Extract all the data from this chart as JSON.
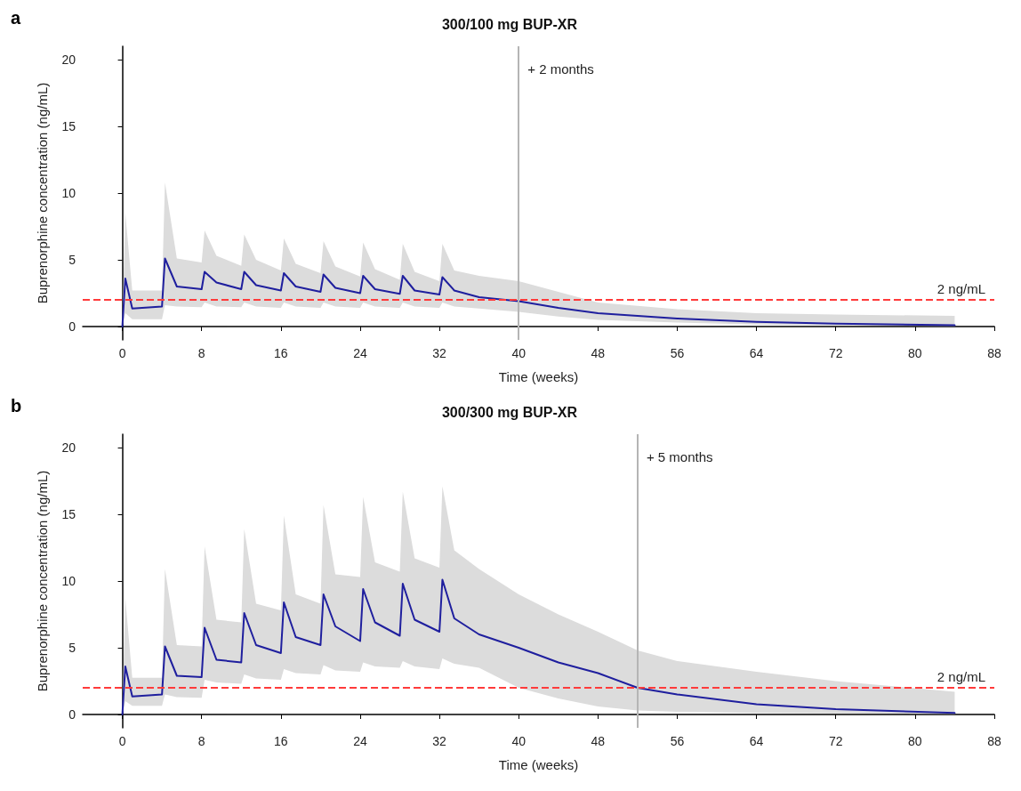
{
  "chart_data": [
    {
      "type": "line",
      "title": "300/100 mg BUP-XR",
      "xlabel": "Time (weeks)",
      "ylabel": "Buprenorphine concentration (ng/mL)",
      "annotations": [
        "a"
      ],
      "x": [
        0,
        0.3,
        1,
        4,
        4.3,
        5.5,
        8,
        8.3,
        9.5,
        12,
        12.3,
        13.5,
        16,
        16.3,
        17.5,
        20,
        20.3,
        21.5,
        24,
        24.3,
        25.5,
        28,
        28.3,
        29.5,
        32,
        32.3,
        33.5,
        36,
        40,
        44,
        48,
        56,
        64,
        72,
        84
      ],
      "series": [
        {
          "color": "#1f1f9e",
          "values": [
            0,
            3.6,
            1.35,
            1.5,
            5.1,
            3.0,
            2.8,
            4.1,
            3.3,
            2.8,
            4.1,
            3.1,
            2.7,
            4.0,
            3.0,
            2.6,
            3.9,
            2.9,
            2.5,
            3.8,
            2.8,
            2.45,
            3.8,
            2.7,
            2.4,
            3.7,
            2.7,
            2.2,
            1.9,
            1.4,
            1.0,
            0.6,
            0.35,
            0.22,
            0.1
          ],
          "upper": [
            0,
            8.5,
            2.7,
            2.7,
            10.8,
            5.1,
            4.8,
            7.2,
            5.3,
            4.55,
            6.9,
            5.0,
            4.2,
            6.6,
            4.7,
            4.0,
            6.4,
            4.5,
            3.75,
            6.3,
            4.3,
            3.5,
            6.2,
            4.1,
            3.4,
            6.2,
            4.2,
            3.8,
            3.4,
            2.6,
            1.8,
            1.3,
            1.0,
            0.9,
            0.8
          ],
          "lower": [
            0,
            1.0,
            0.55,
            0.55,
            1.6,
            1.5,
            1.45,
            1.8,
            1.5,
            1.45,
            1.8,
            1.5,
            1.4,
            1.8,
            1.5,
            1.4,
            1.8,
            1.5,
            1.4,
            1.8,
            1.5,
            1.4,
            1.8,
            1.5,
            1.4,
            1.8,
            1.5,
            1.35,
            1.1,
            0.75,
            0.5,
            0.3,
            0.15,
            0.1,
            0.05
          ]
        }
      ],
      "xlim": [
        -4,
        88
      ],
      "xticks": [
        0,
        8,
        16,
        24,
        32,
        40,
        48,
        56,
        64,
        72,
        80,
        88
      ],
      "ylim": [
        -1,
        21
      ],
      "yticks": [
        0,
        5,
        10,
        15,
        20
      ],
      "ref_lines": [
        {
          "axis": "y",
          "value": 2,
          "label": "2 ng/mL",
          "color": "#ff3b3b",
          "line_style": "dashed"
        },
        {
          "axis": "x",
          "value": 40,
          "label": "+ 2 months",
          "color": "#b5b5b5"
        }
      ]
    },
    {
      "type": "line",
      "title": "300/300 mg BUP-XR",
      "xlabel": "Time (weeks)",
      "ylabel": "Buprenorphine concentration (ng/mL)",
      "annotations": [
        "b"
      ],
      "x": [
        0,
        0.3,
        1,
        4,
        4.3,
        5.5,
        8,
        8.3,
        9.5,
        12,
        12.3,
        13.5,
        16,
        16.3,
        17.5,
        20,
        20.3,
        21.5,
        24,
        24.3,
        25.5,
        28,
        28.3,
        29.5,
        32,
        32.3,
        33.5,
        36,
        40,
        44,
        48,
        52,
        56,
        64,
        72,
        84
      ],
      "series": [
        {
          "color": "#1f1f9e",
          "values": [
            0,
            3.6,
            1.35,
            1.5,
            5.1,
            2.9,
            2.8,
            6.5,
            4.1,
            3.9,
            7.6,
            5.2,
            4.6,
            8.4,
            5.8,
            5.2,
            9.0,
            6.6,
            5.5,
            9.4,
            6.9,
            5.9,
            9.8,
            7.1,
            6.2,
            10.1,
            7.2,
            6.0,
            5.0,
            3.9,
            3.1,
            2.0,
            1.5,
            0.77,
            0.4,
            0.12
          ],
          "upper": [
            0,
            8.7,
            2.75,
            2.75,
            10.9,
            5.2,
            5.1,
            12.6,
            7.1,
            6.9,
            13.9,
            8.3,
            7.8,
            14.9,
            9.0,
            8.3,
            15.7,
            10.5,
            10.3,
            16.3,
            11.4,
            10.7,
            16.7,
            11.7,
            11.0,
            17.1,
            12.3,
            10.9,
            9.0,
            7.5,
            6.2,
            4.8,
            4.0,
            3.2,
            2.5,
            1.7
          ],
          "lower": [
            0,
            1.0,
            0.65,
            0.65,
            1.5,
            1.3,
            1.25,
            2.6,
            2.4,
            2.3,
            3.0,
            2.7,
            2.6,
            3.4,
            3.1,
            3.0,
            3.7,
            3.3,
            3.2,
            3.9,
            3.6,
            3.5,
            4.0,
            3.6,
            3.4,
            4.2,
            3.8,
            3.5,
            2.0,
            1.2,
            0.6,
            0.3,
            0.2,
            0.12,
            0.08,
            0.05
          ]
        }
      ],
      "xlim": [
        -4,
        88
      ],
      "xticks": [
        0,
        8,
        16,
        24,
        32,
        40,
        48,
        56,
        64,
        72,
        80,
        88
      ],
      "ylim": [
        -1,
        21
      ],
      "yticks": [
        0,
        5,
        10,
        15,
        20
      ],
      "ref_lines": [
        {
          "axis": "y",
          "value": 2,
          "label": "2 ng/mL",
          "color": "#ff3b3b",
          "line_style": "dashed"
        },
        {
          "axis": "x",
          "value": 52,
          "label": "+ 5 months",
          "color": "#b5b5b5"
        }
      ]
    }
  ]
}
